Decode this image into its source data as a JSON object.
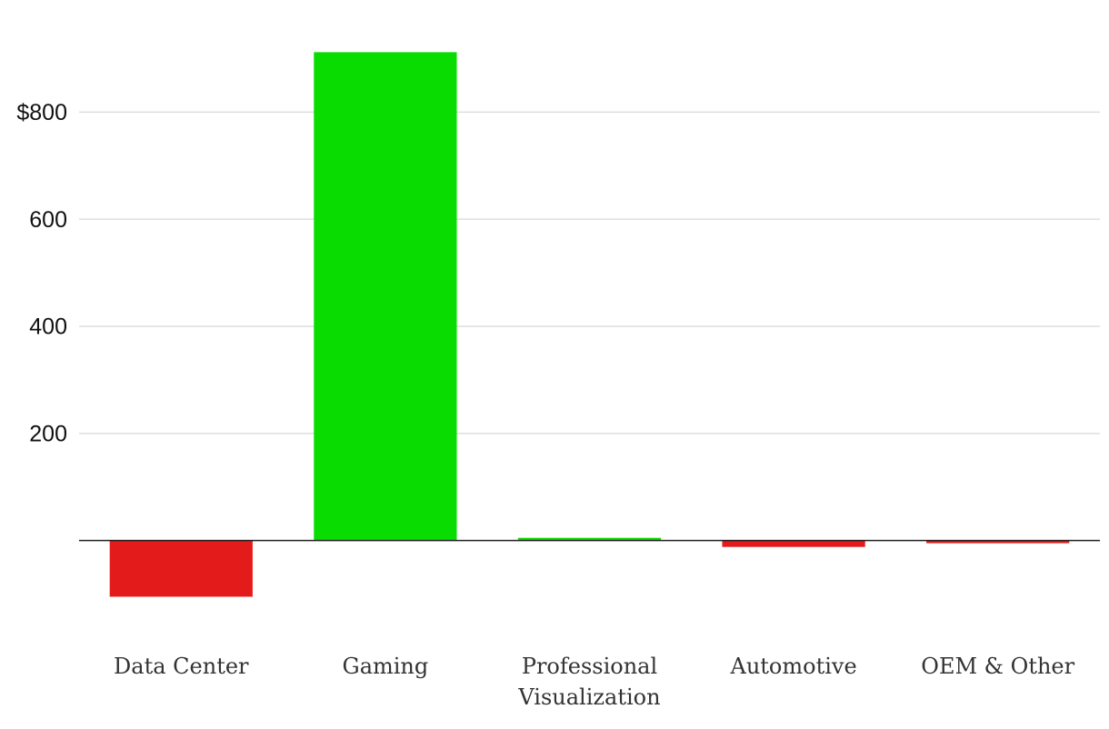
{
  "chart_data": {
    "type": "bar",
    "categories": [
      "Data Center",
      "Gaming",
      "Professional Visualization",
      "Automotive",
      "OEM & Other"
    ],
    "values": [
      -105,
      912,
      5,
      -12,
      -5
    ],
    "positive_color": "#08dc00",
    "negative_color": "#e31b1b",
    "ylim": [
      -150,
      950
    ],
    "yticks": [
      200,
      400,
      600,
      {
        "value": 800,
        "label": "$800"
      }
    ],
    "grid": true
  }
}
